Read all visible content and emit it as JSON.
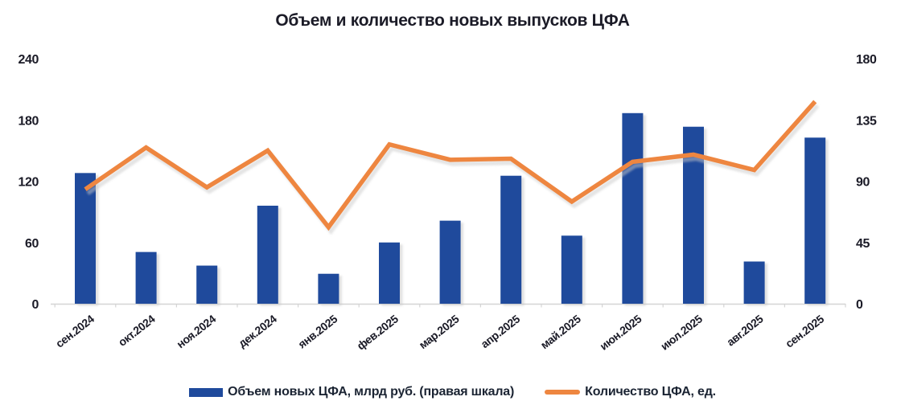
{
  "title": "Объем и количество новых выпусков ЦФА",
  "colors": {
    "bar": "#1F4A9C",
    "line": "#EE8640",
    "text": "#1B1B27",
    "axis_line": "#D4D4D4",
    "shadow": "#C9C9C9"
  },
  "legend": {
    "bars": "Объем новых ЦФА, млрд руб. (правая шкала)",
    "line": "Количество ЦФА, ед."
  },
  "chart_data": {
    "type": "bar",
    "title": "Объем и количество новых выпусков ЦФА",
    "categories": [
      "сен.2024",
      "окт.2024",
      "ноя.2024",
      "дек.2024",
      "янв.2025",
      "фев.2025",
      "мар.2025",
      "апр.2025",
      "май.2025",
      "июн.2025",
      "июл.2025",
      "авг.2025",
      "сен.2025"
    ],
    "series": [
      {
        "name": "Объем новых ЦФА, млрд руб. (правая шкала)",
        "type": "bar",
        "axis": "right",
        "color": "#1F4A9C",
        "values": [
          96,
          38,
          28,
          72,
          22,
          45,
          61,
          94,
          50,
          140,
          130,
          31,
          122
        ]
      },
      {
        "name": "Количество ЦФА, ед.",
        "type": "line",
        "axis": "left",
        "color": "#EE8640",
        "values": [
          112,
          153,
          114,
          150,
          75,
          156,
          141,
          142,
          100,
          139,
          146,
          131,
          198
        ]
      }
    ],
    "axes": {
      "left": {
        "min": 0,
        "max": 240,
        "ticks": [
          240,
          180,
          120,
          60,
          0
        ]
      },
      "right": {
        "min": 0,
        "max": 180,
        "ticks": [
          180,
          135,
          90,
          45,
          0
        ]
      }
    },
    "legend_position": "bottom",
    "grid": false
  }
}
